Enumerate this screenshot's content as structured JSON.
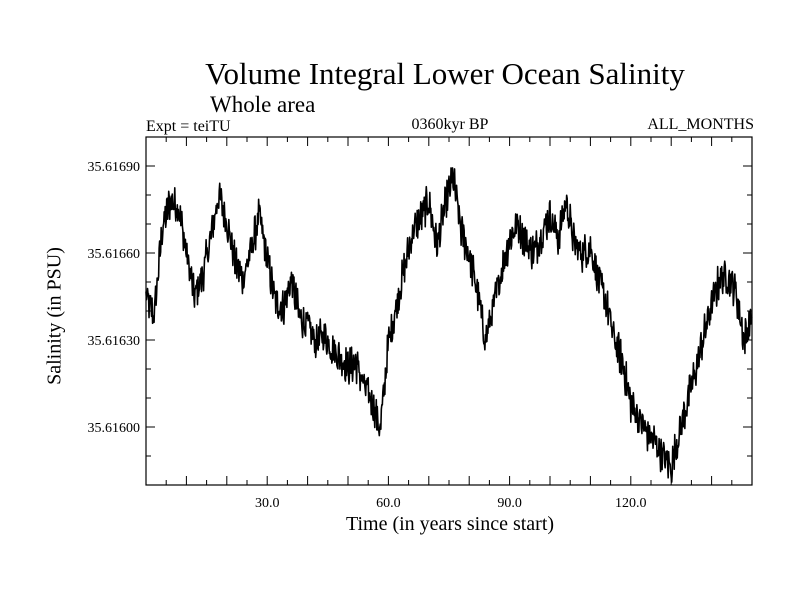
{
  "chart_data": {
    "type": "line",
    "title": "Volume Integral Lower Ocean Salinity",
    "subtitle": "Whole area",
    "experiment": "Expt = teiTU",
    "period": "0360kyr BP",
    "months": "ALL_MONTHS",
    "xlabel": "Time (in years since start)",
    "ylabel": "Salinity (in PSU)",
    "xlim": [
      0,
      150
    ],
    "ylim": [
      35.6158,
      35.617
    ],
    "xticks": [
      "30.0",
      "60.0",
      "90.0",
      "120.0"
    ],
    "xtick_values": [
      30,
      60,
      90,
      120
    ],
    "yticks": [
      "35.61600",
      "35.61630",
      "35.61660",
      "35.61690"
    ],
    "ytick_values": [
      35.616,
      35.6163,
      35.6166,
      35.6169
    ],
    "grid": false,
    "series": [
      {
        "name": "salinity",
        "x": [
          0,
          2,
          4,
          6,
          8,
          10,
          12,
          14,
          16,
          18,
          20,
          22,
          24,
          26,
          28,
          30,
          32,
          34,
          36,
          38,
          40,
          42,
          44,
          46,
          48,
          50,
          52,
          54,
          56,
          58,
          60,
          62,
          64,
          66,
          68,
          70,
          72,
          74,
          76,
          78,
          80,
          82,
          84,
          86,
          88,
          90,
          92,
          94,
          96,
          98,
          100,
          102,
          104,
          106,
          108,
          110,
          112,
          114,
          116,
          118,
          120,
          122,
          124,
          126,
          128,
          130,
          132,
          134,
          136,
          138,
          140,
          142,
          144,
          146,
          148,
          150
        ],
        "values": [
          35.61645,
          35.61638,
          35.61668,
          35.61678,
          35.61676,
          35.6166,
          35.61645,
          35.61652,
          35.61665,
          35.6168,
          35.61671,
          35.61657,
          35.61651,
          35.61661,
          35.61673,
          35.61658,
          35.61643,
          35.61641,
          35.61651,
          35.61638,
          35.61635,
          35.61629,
          35.61632,
          35.61627,
          35.61624,
          35.61621,
          35.61622,
          35.61614,
          35.61609,
          35.61599,
          35.61629,
          35.61642,
          35.61655,
          35.61667,
          35.61672,
          35.61678,
          35.61662,
          35.61676,
          35.61686,
          35.61668,
          35.61659,
          35.61647,
          35.6163,
          35.61641,
          35.61654,
          35.61665,
          35.6167,
          35.61664,
          35.6166,
          35.61667,
          35.61673,
          35.61665,
          35.61678,
          35.61663,
          35.6166,
          35.61662,
          35.61651,
          35.61642,
          35.6163,
          35.61622,
          35.61608,
          35.61603,
          35.61598,
          35.61595,
          35.6159,
          35.61586,
          35.61598,
          35.61609,
          35.61619,
          35.61631,
          35.61642,
          35.61651,
          35.61652,
          35.61647,
          35.6163,
          35.61638
        ]
      }
    ]
  }
}
